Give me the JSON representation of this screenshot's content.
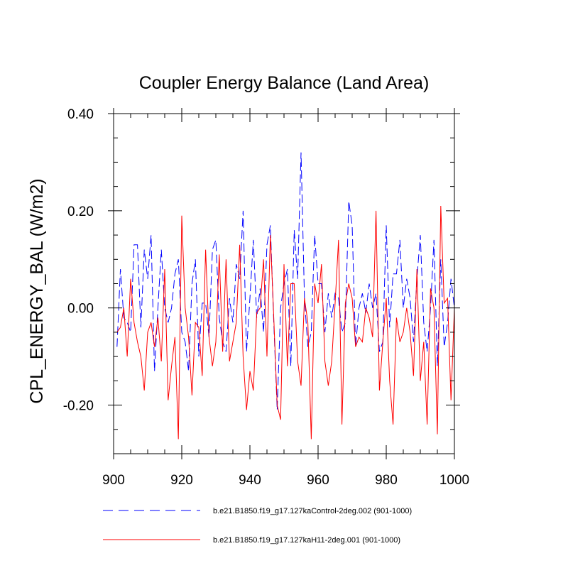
{
  "chart_data": {
    "type": "line",
    "title": "Coupler Energy Balance (Land Area)",
    "xlabel": "",
    "ylabel": "CPL_ENERGY_BAL  (W/m2)",
    "xlim": [
      900,
      1000
    ],
    "ylim": [
      -0.3,
      0.4
    ],
    "x_ticks": [
      900,
      920,
      940,
      960,
      980,
      1000
    ],
    "x_tick_labels": [
      "900",
      "920",
      "940",
      "960",
      "980",
      "1000"
    ],
    "y_ticks": [
      -0.2,
      0.0,
      0.2,
      0.4
    ],
    "y_tick_labels": [
      "-0.20",
      "0.00",
      "0.20",
      "0.40"
    ],
    "x": [
      901,
      902,
      903,
      904,
      905,
      906,
      907,
      908,
      909,
      910,
      911,
      912,
      913,
      914,
      915,
      916,
      917,
      918,
      919,
      920,
      921,
      922,
      923,
      924,
      925,
      926,
      927,
      928,
      929,
      930,
      931,
      932,
      933,
      934,
      935,
      936,
      937,
      938,
      939,
      940,
      941,
      942,
      943,
      944,
      945,
      946,
      947,
      948,
      949,
      950,
      951,
      952,
      953,
      954,
      955,
      956,
      957,
      958,
      959,
      960,
      961,
      962,
      963,
      964,
      965,
      966,
      967,
      968,
      969,
      970,
      971,
      972,
      973,
      974,
      975,
      976,
      977,
      978,
      979,
      980,
      981,
      982,
      983,
      984,
      985,
      986,
      987,
      988,
      989,
      990,
      991,
      992,
      993,
      994,
      995,
      996,
      997,
      998,
      999,
      1000
    ],
    "series": [
      {
        "name": "b.e21.B1850.f19_g17.127kaControl-2deg.002 (901-1000)",
        "color": "#0000ff",
        "style": "dashed",
        "values": [
          -0.08,
          0.08,
          -0.02,
          -0.03,
          -0.05,
          0.13,
          0.13,
          -0.04,
          0.12,
          0.06,
          0.15,
          -0.13,
          0.0,
          0.12,
          0.0,
          -0.03,
          0.0,
          0.07,
          0.1,
          -0.05,
          -0.07,
          -0.13,
          0.05,
          0.1,
          -0.1,
          0.01,
          0.01,
          -0.06,
          0.12,
          0.14,
          -0.02,
          -0.07,
          -0.09,
          0.02,
          -0.03,
          0.09,
          0.06,
          0.2,
          -0.09,
          0.02,
          0.14,
          -0.02,
          0.04,
          -0.05,
          0.13,
          0.17,
          -0.03,
          -0.21,
          0.0,
          0.05,
          0.08,
          -0.12,
          0.16,
          0.06,
          0.32,
          0.02,
          -0.08,
          -0.05,
          0.15,
          0.05,
          0.05,
          -0.05,
          0.03,
          -0.02,
          0.03,
          0.02,
          -0.05,
          -0.03,
          0.22,
          0.17,
          -0.08,
          0.0,
          0.03,
          -0.01,
          0.05,
          0.0,
          0.03,
          -0.09,
          -0.07,
          0.17,
          -0.04,
          0.07,
          0.07,
          0.14,
          0.0,
          0.06,
          0.02,
          -0.07,
          0.06,
          0.15,
          -0.03,
          -0.09,
          0.0,
          0.14,
          -0.12,
          0.1,
          -0.08,
          -0.03,
          0.06,
          0.0
        ]
      },
      {
        "name": "b.e21.B1850.f19_g17.127kaH11-2deg.001 (901-1000)",
        "color": "#ff0000",
        "style": "solid",
        "values": [
          -0.05,
          -0.04,
          0.0,
          -0.1,
          0.06,
          -0.03,
          -0.07,
          -0.1,
          -0.17,
          -0.05,
          -0.03,
          -0.08,
          -0.02,
          -0.11,
          0.08,
          -0.19,
          -0.12,
          -0.06,
          -0.27,
          0.19,
          0.0,
          -0.06,
          -0.18,
          -0.03,
          -0.04,
          -0.14,
          0.12,
          -0.06,
          -0.12,
          -0.07,
          0.11,
          -0.09,
          0.1,
          -0.11,
          -0.07,
          -0.03,
          0.13,
          -0.1,
          -0.21,
          -0.13,
          -0.17,
          -0.01,
          0.0,
          0.1,
          -0.1,
          0.15,
          -0.02,
          -0.2,
          -0.23,
          0.09,
          -0.12,
          0.05,
          0.05,
          -0.11,
          -0.16,
          0.02,
          -0.03,
          -0.27,
          0.05,
          0.01,
          0.09,
          -0.11,
          -0.16,
          -0.11,
          0.01,
          0.14,
          -0.24,
          0.01,
          0.05,
          0.02,
          -0.08,
          -0.06,
          -0.07,
          0.0,
          -0.02,
          -0.06,
          0.2,
          -0.17,
          -0.07,
          0.02,
          -0.15,
          -0.24,
          -0.02,
          -0.07,
          -0.05,
          0.0,
          -0.05,
          -0.14,
          0.08,
          -0.15,
          -0.07,
          -0.24,
          0.04,
          0.0,
          -0.26,
          0.21,
          0.01,
          0.02,
          -0.19,
          0.0
        ]
      }
    ],
    "legend_position": "bottom",
    "grid": false
  }
}
